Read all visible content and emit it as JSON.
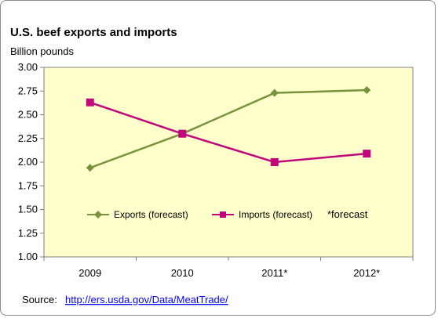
{
  "chart_data": {
    "type": "line",
    "title": "U.S. beef exports and imports",
    "ylabel": "Billion pounds",
    "xlabel": "",
    "categories": [
      "2009",
      "2010",
      "2011*",
      "2012*"
    ],
    "ylim": [
      1.0,
      3.0
    ],
    "yticks": [
      "1.00",
      "1.25",
      "1.50",
      "1.75",
      "2.00",
      "2.25",
      "2.50",
      "2.75",
      "3.00"
    ],
    "grid": false,
    "legend_position": "inside-bottom",
    "series": [
      {
        "name": "Exports (forecast)",
        "values": [
          1.94,
          2.3,
          2.73,
          2.76
        ],
        "color": "#77933c",
        "marker": "diamond"
      },
      {
        "name": "Imports (forecast)",
        "values": [
          2.63,
          2.3,
          2.0,
          2.09
        ],
        "color": "#c0067a",
        "marker": "square"
      }
    ],
    "annotation": "*forecast",
    "plot_background": "#ffffcc"
  },
  "source": {
    "label": "Source:",
    "url_text": "http://ers.usda.gov/Data/MeatTrade/"
  }
}
